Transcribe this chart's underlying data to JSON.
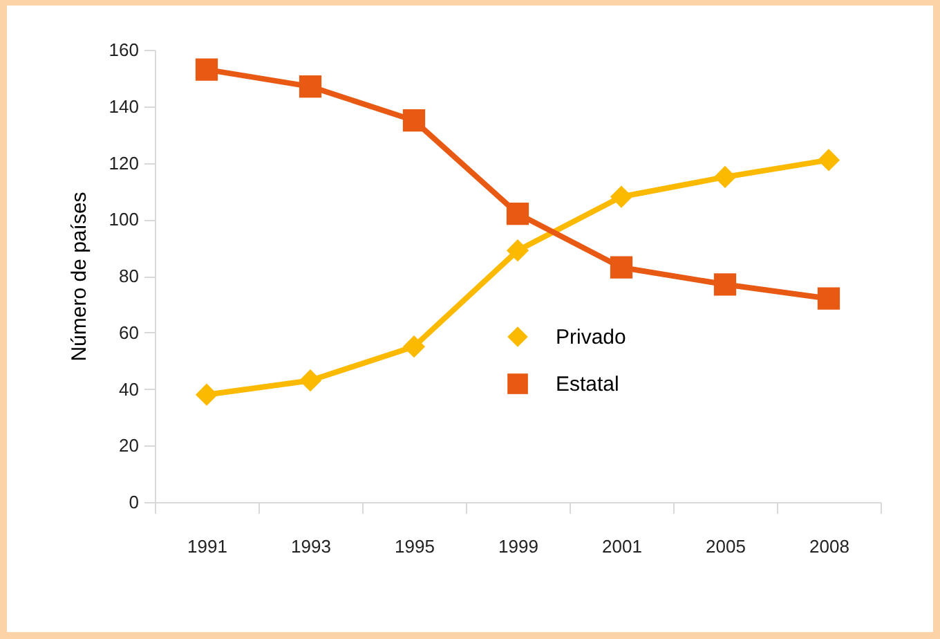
{
  "chart_data": {
    "type": "line",
    "ylabel": "Número de países",
    "categories": [
      "1991",
      "1993",
      "1995",
      "1999",
      "2001",
      "2005",
      "2008"
    ],
    "series": [
      {
        "name": "Privado",
        "color": "#fbb900",
        "marker": "diamond",
        "values": [
          38,
          43,
          55,
          89,
          108,
          115,
          121
        ]
      },
      {
        "name": "Estatal",
        "color": "#e85a14",
        "marker": "square",
        "values": [
          153,
          147,
          135,
          102,
          83,
          77,
          72
        ]
      }
    ],
    "ylim": [
      0,
      160
    ],
    "yticks": [
      0,
      20,
      40,
      60,
      80,
      100,
      120,
      140,
      160
    ],
    "grid": false,
    "legend": "bottom right",
    "line_style": "solid"
  }
}
